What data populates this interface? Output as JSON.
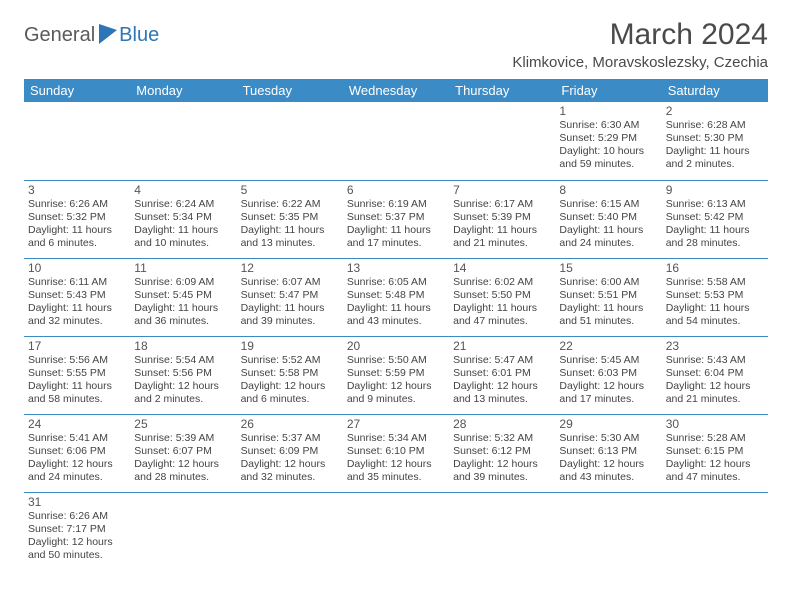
{
  "logo": {
    "part1": "General",
    "part2": "Blue"
  },
  "title": "March 2024",
  "location": "Klimkovice, Moravskoslezsky, Czechia",
  "colors": {
    "header_bg": "#3b8bc7",
    "header_text": "#ffffff",
    "row_border": "#3b8bc7",
    "body_text": "#444444",
    "title_text": "#4a4a4a",
    "logo_accent": "#2e75b6"
  },
  "weekdays": [
    "Sunday",
    "Monday",
    "Tuesday",
    "Wednesday",
    "Thursday",
    "Friday",
    "Saturday"
  ],
  "weeks": [
    [
      null,
      null,
      null,
      null,
      null,
      {
        "n": "1",
        "sr": "Sunrise: 6:30 AM",
        "ss": "Sunset: 5:29 PM",
        "dl": "Daylight: 10 hours and 59 minutes."
      },
      {
        "n": "2",
        "sr": "Sunrise: 6:28 AM",
        "ss": "Sunset: 5:30 PM",
        "dl": "Daylight: 11 hours and 2 minutes."
      }
    ],
    [
      {
        "n": "3",
        "sr": "Sunrise: 6:26 AM",
        "ss": "Sunset: 5:32 PM",
        "dl": "Daylight: 11 hours and 6 minutes."
      },
      {
        "n": "4",
        "sr": "Sunrise: 6:24 AM",
        "ss": "Sunset: 5:34 PM",
        "dl": "Daylight: 11 hours and 10 minutes."
      },
      {
        "n": "5",
        "sr": "Sunrise: 6:22 AM",
        "ss": "Sunset: 5:35 PM",
        "dl": "Daylight: 11 hours and 13 minutes."
      },
      {
        "n": "6",
        "sr": "Sunrise: 6:19 AM",
        "ss": "Sunset: 5:37 PM",
        "dl": "Daylight: 11 hours and 17 minutes."
      },
      {
        "n": "7",
        "sr": "Sunrise: 6:17 AM",
        "ss": "Sunset: 5:39 PM",
        "dl": "Daylight: 11 hours and 21 minutes."
      },
      {
        "n": "8",
        "sr": "Sunrise: 6:15 AM",
        "ss": "Sunset: 5:40 PM",
        "dl": "Daylight: 11 hours and 24 minutes."
      },
      {
        "n": "9",
        "sr": "Sunrise: 6:13 AM",
        "ss": "Sunset: 5:42 PM",
        "dl": "Daylight: 11 hours and 28 minutes."
      }
    ],
    [
      {
        "n": "10",
        "sr": "Sunrise: 6:11 AM",
        "ss": "Sunset: 5:43 PM",
        "dl": "Daylight: 11 hours and 32 minutes."
      },
      {
        "n": "11",
        "sr": "Sunrise: 6:09 AM",
        "ss": "Sunset: 5:45 PM",
        "dl": "Daylight: 11 hours and 36 minutes."
      },
      {
        "n": "12",
        "sr": "Sunrise: 6:07 AM",
        "ss": "Sunset: 5:47 PM",
        "dl": "Daylight: 11 hours and 39 minutes."
      },
      {
        "n": "13",
        "sr": "Sunrise: 6:05 AM",
        "ss": "Sunset: 5:48 PM",
        "dl": "Daylight: 11 hours and 43 minutes."
      },
      {
        "n": "14",
        "sr": "Sunrise: 6:02 AM",
        "ss": "Sunset: 5:50 PM",
        "dl": "Daylight: 11 hours and 47 minutes."
      },
      {
        "n": "15",
        "sr": "Sunrise: 6:00 AM",
        "ss": "Sunset: 5:51 PM",
        "dl": "Daylight: 11 hours and 51 minutes."
      },
      {
        "n": "16",
        "sr": "Sunrise: 5:58 AM",
        "ss": "Sunset: 5:53 PM",
        "dl": "Daylight: 11 hours and 54 minutes."
      }
    ],
    [
      {
        "n": "17",
        "sr": "Sunrise: 5:56 AM",
        "ss": "Sunset: 5:55 PM",
        "dl": "Daylight: 11 hours and 58 minutes."
      },
      {
        "n": "18",
        "sr": "Sunrise: 5:54 AM",
        "ss": "Sunset: 5:56 PM",
        "dl": "Daylight: 12 hours and 2 minutes."
      },
      {
        "n": "19",
        "sr": "Sunrise: 5:52 AM",
        "ss": "Sunset: 5:58 PM",
        "dl": "Daylight: 12 hours and 6 minutes."
      },
      {
        "n": "20",
        "sr": "Sunrise: 5:50 AM",
        "ss": "Sunset: 5:59 PM",
        "dl": "Daylight: 12 hours and 9 minutes."
      },
      {
        "n": "21",
        "sr": "Sunrise: 5:47 AM",
        "ss": "Sunset: 6:01 PM",
        "dl": "Daylight: 12 hours and 13 minutes."
      },
      {
        "n": "22",
        "sr": "Sunrise: 5:45 AM",
        "ss": "Sunset: 6:03 PM",
        "dl": "Daylight: 12 hours and 17 minutes."
      },
      {
        "n": "23",
        "sr": "Sunrise: 5:43 AM",
        "ss": "Sunset: 6:04 PM",
        "dl": "Daylight: 12 hours and 21 minutes."
      }
    ],
    [
      {
        "n": "24",
        "sr": "Sunrise: 5:41 AM",
        "ss": "Sunset: 6:06 PM",
        "dl": "Daylight: 12 hours and 24 minutes."
      },
      {
        "n": "25",
        "sr": "Sunrise: 5:39 AM",
        "ss": "Sunset: 6:07 PM",
        "dl": "Daylight: 12 hours and 28 minutes."
      },
      {
        "n": "26",
        "sr": "Sunrise: 5:37 AM",
        "ss": "Sunset: 6:09 PM",
        "dl": "Daylight: 12 hours and 32 minutes."
      },
      {
        "n": "27",
        "sr": "Sunrise: 5:34 AM",
        "ss": "Sunset: 6:10 PM",
        "dl": "Daylight: 12 hours and 35 minutes."
      },
      {
        "n": "28",
        "sr": "Sunrise: 5:32 AM",
        "ss": "Sunset: 6:12 PM",
        "dl": "Daylight: 12 hours and 39 minutes."
      },
      {
        "n": "29",
        "sr": "Sunrise: 5:30 AM",
        "ss": "Sunset: 6:13 PM",
        "dl": "Daylight: 12 hours and 43 minutes."
      },
      {
        "n": "30",
        "sr": "Sunrise: 5:28 AM",
        "ss": "Sunset: 6:15 PM",
        "dl": "Daylight: 12 hours and 47 minutes."
      }
    ],
    [
      {
        "n": "31",
        "sr": "Sunrise: 6:26 AM",
        "ss": "Sunset: 7:17 PM",
        "dl": "Daylight: 12 hours and 50 minutes."
      },
      null,
      null,
      null,
      null,
      null,
      null
    ]
  ]
}
